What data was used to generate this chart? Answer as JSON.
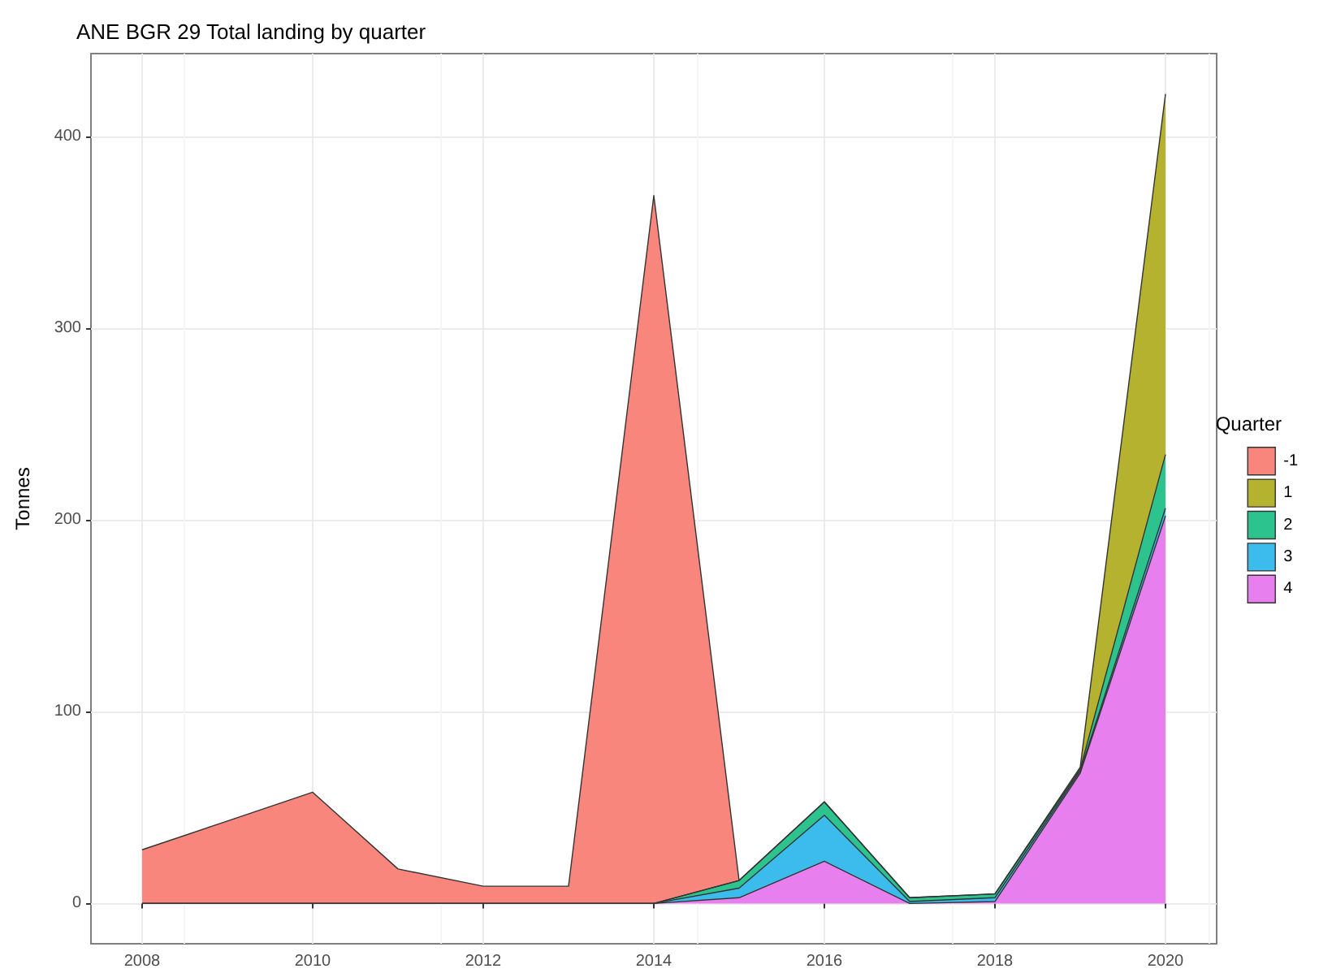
{
  "chart_data": {
    "type": "area",
    "title": "ANE BGR 29 Total landing by quarter",
    "ylabel": "Tonnes",
    "legend_title": "Quarter",
    "stacked": true,
    "x": [
      2008,
      2009,
      2010,
      2011,
      2012,
      2013,
      2014,
      2015,
      2016,
      2017,
      2018,
      2019,
      2020
    ],
    "series": [
      {
        "name": "4",
        "color": "#e780ee",
        "values": [
          0,
          0,
          0,
          0,
          0,
          0,
          0,
          3,
          22,
          0,
          1,
          68,
          202
        ]
      },
      {
        "name": "3",
        "color": "#3cbcec",
        "values": [
          0,
          0,
          0,
          0,
          0,
          0,
          0,
          5,
          24,
          1,
          2,
          1,
          4
        ]
      },
      {
        "name": "2",
        "color": "#2dc38f",
        "values": [
          0,
          0,
          0,
          0,
          0,
          0,
          0,
          4,
          7,
          2,
          2,
          1,
          28
        ]
      },
      {
        "name": "1",
        "color": "#b4b22e",
        "values": [
          0,
          0,
          0,
          0,
          0,
          0,
          0,
          0,
          0,
          0,
          0,
          1,
          188
        ]
      },
      {
        "name": "-1",
        "color": "#f8867c",
        "values": [
          28,
          43,
          58,
          18,
          9,
          9,
          369,
          0,
          null,
          null,
          null,
          null,
          null
        ]
      }
    ],
    "xlim": [
      2007.4,
      2020.6
    ],
    "xticks": [
      2008,
      2010,
      2012,
      2014,
      2016,
      2018,
      2020
    ],
    "ylim": [
      -21,
      443
    ],
    "yticks": [
      0,
      100,
      200,
      300,
      400
    ],
    "grid": true,
    "legend": "right"
  }
}
